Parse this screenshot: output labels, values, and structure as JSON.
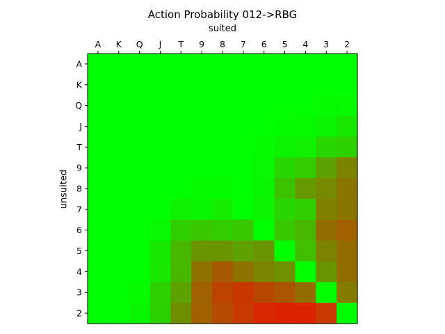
{
  "chart_data": {
    "type": "heatmap",
    "title": "Action Probability 012->RBG",
    "xlabel": "suited",
    "ylabel": "unsuited",
    "x_ticks": [
      "A",
      "K",
      "Q",
      "J",
      "T",
      "9",
      "8",
      "7",
      "6",
      "5",
      "4",
      "3",
      "2"
    ],
    "y_ticks": [
      "A",
      "K",
      "Q",
      "J",
      "T",
      "9",
      "8",
      "7",
      "6",
      "5",
      "4",
      "3",
      "2"
    ],
    "x_axis_position": "top",
    "grid": false,
    "legend": "none",
    "encoding": {
      "r": "#ff0000",
      "g": "#00ff00",
      "b": "#0000ff"
    },
    "rows": [
      [
        "#00ff00",
        "#00ff00",
        "#00ff00",
        "#00ff00",
        "#00ff00",
        "#00ff00",
        "#00ff00",
        "#00ff00",
        "#00ff00",
        "#00ff00",
        "#00ff00",
        "#00ff00",
        "#00ff00"
      ],
      [
        "#00ff00",
        "#00ff00",
        "#00ff00",
        "#00ff00",
        "#00ff00",
        "#00ff00",
        "#00ff00",
        "#00ff00",
        "#00ff00",
        "#00ff00",
        "#00ff00",
        "#00ff00",
        "#00ff00"
      ],
      [
        "#00ff00",
        "#00ff00",
        "#00ff00",
        "#00ff00",
        "#00ff00",
        "#00ff00",
        "#00ff00",
        "#00ff00",
        "#00ff00",
        "#00ff00",
        "#00ff00",
        "#03fc00",
        "#05fa00"
      ],
      [
        "#00ff00",
        "#00ff00",
        "#00ff00",
        "#00ff00",
        "#00ff00",
        "#00ff00",
        "#00ff00",
        "#00ff00",
        "#00ff00",
        "#02fd00",
        "#05fa00",
        "#0af500",
        "#18e700"
      ],
      [
        "#00ff00",
        "#00ff00",
        "#00ff00",
        "#00ff00",
        "#00ff00",
        "#00ff00",
        "#00ff00",
        "#00ff00",
        "#03fc00",
        "#0cf300",
        "#0ef100",
        "#28d700",
        "#2ed100"
      ],
      [
        "#00ff00",
        "#00ff00",
        "#00ff00",
        "#00ff00",
        "#00ff00",
        "#00ff00",
        "#00ff00",
        "#00ff00",
        "#06f900",
        "#28d700",
        "#32cd00",
        "#5ea100",
        "#7c8300"
      ],
      [
        "#00ff00",
        "#00ff00",
        "#00ff00",
        "#00ff00",
        "#00ff00",
        "#04fb00",
        "#02fd00",
        "#00ff00",
        "#08f700",
        "#3cc300",
        "#669900",
        "#758a00",
        "#897600"
      ],
      [
        "#00ff00",
        "#00ff00",
        "#00ff00",
        "#00ff00",
        "#0ef100",
        "#08f700",
        "#12ed00",
        "#00ff00",
        "#0cf300",
        "#28d700",
        "#30cf00",
        "#7f8000",
        "#897600"
      ],
      [
        "#00ff00",
        "#00ff00",
        "#00ff00",
        "#06f900",
        "#30cf00",
        "#38c700",
        "#32cd00",
        "#38c700",
        "#00ff00",
        "#38c700",
        "#48b700",
        "#926d00",
        "#a16000"
      ],
      [
        "#00ff00",
        "#00ff00",
        "#00ff00",
        "#16e900",
        "#48b700",
        "#6a9500",
        "#6a9500",
        "#5ea100",
        "#6a9500",
        "#00ff00",
        "#40bf00",
        "#7c8300",
        "#926d00"
      ],
      [
        "#00ff00",
        "#00ff00",
        "#00ff00",
        "#18e700",
        "#48b700",
        "#8d7200",
        "#a65900",
        "#8c7300",
        "#7b8400",
        "#6f9000",
        "#00ff00",
        "#6a9500",
        "#926d00"
      ],
      [
        "#00ff00",
        "#00ff00",
        "#04fb00",
        "#2ed100",
        "#5ea100",
        "#9f6000",
        "#bc4300",
        "#c83700",
        "#b84700",
        "#ab5400",
        "#926d00",
        "#00ff00",
        "#837c00"
      ],
      [
        "#00ff00",
        "#00ff00",
        "#08f700",
        "#2ed100",
        "#708f00",
        "#9f6000",
        "#b44b00",
        "#c63900",
        "#d82700",
        "#dc2300",
        "#dc2300",
        "#c63900",
        "#00ff00"
      ]
    ]
  }
}
